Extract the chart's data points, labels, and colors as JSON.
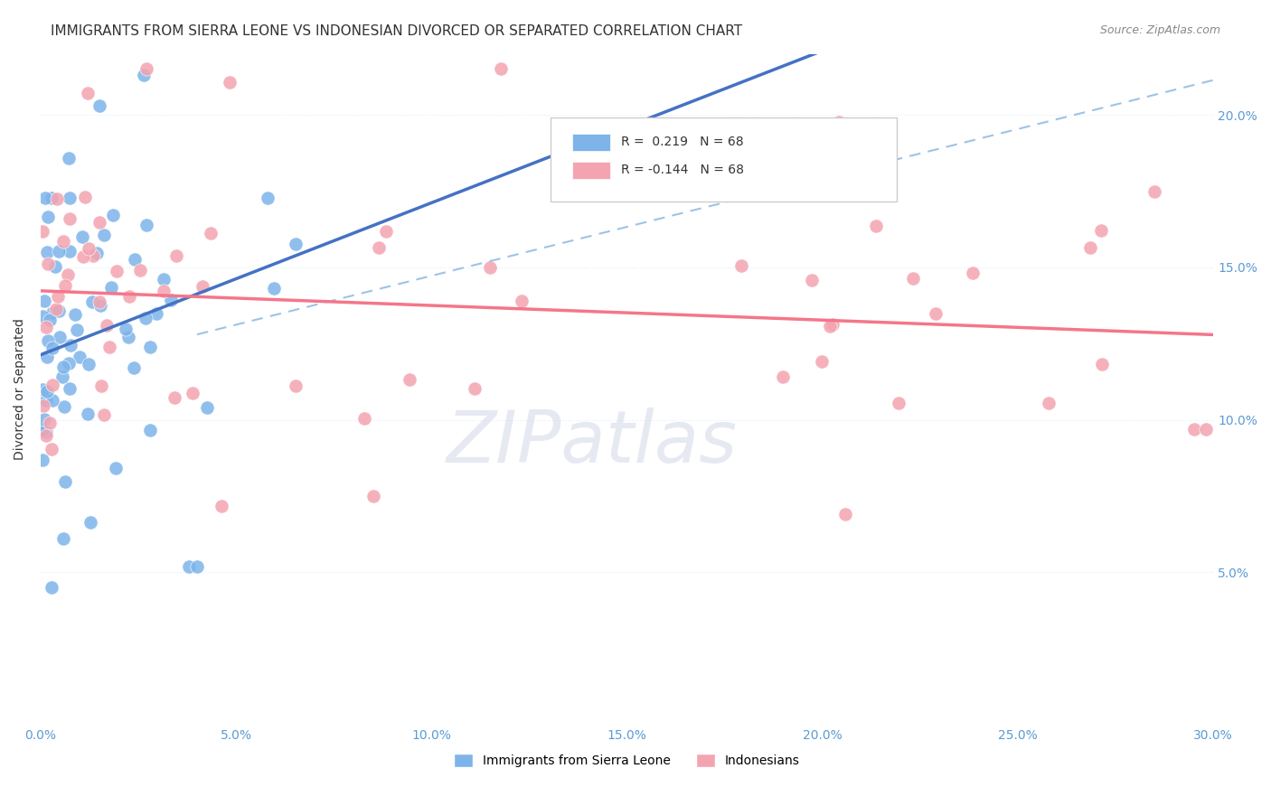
{
  "title": "IMMIGRANTS FROM SIERRA LEONE VS INDONESIAN DIVORCED OR SEPARATED CORRELATION CHART",
  "source": "Source: ZipAtlas.com",
  "ylabel": "Divorced or Separated",
  "xlim": [
    0.0,
    0.3
  ],
  "ylim": [
    0.0,
    0.22
  ],
  "xticks": [
    0.0,
    0.05,
    0.1,
    0.15,
    0.2,
    0.25,
    0.3
  ],
  "xtick_labels": [
    "0.0%",
    "5.0%",
    "10.0%",
    "15.0%",
    "20.0%",
    "25.0%",
    "30.0%"
  ],
  "yticks": [
    0.0,
    0.05,
    0.1,
    0.15,
    0.2
  ],
  "ytick_labels": [
    "",
    "5.0%",
    "10.0%",
    "15.0%",
    "20.0%"
  ],
  "r_blue": 0.219,
  "r_pink": -0.144,
  "n": 68,
  "blue_color": "#7EB4EA",
  "pink_color": "#F4A4B0",
  "blue_line_color": "#4472C4",
  "pink_line_color": "#F4768A",
  "dashed_line_color": "#9DC3E6",
  "background_color": "#FFFFFF",
  "grid_color": "#DDEEFF",
  "title_fontsize": 11,
  "axis_label_fontsize": 10,
  "tick_fontsize": 10
}
